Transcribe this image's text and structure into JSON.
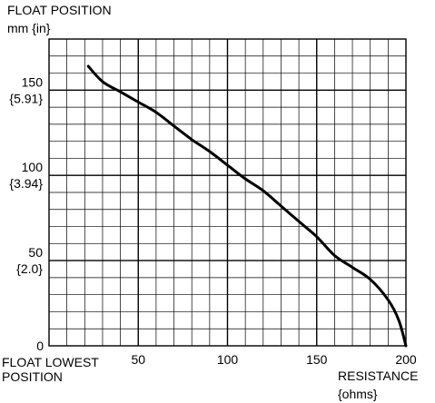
{
  "chart_data": {
    "type": "line",
    "ylabel": [
      "FLOAT POSITION",
      "mm {in}"
    ],
    "xlabel": [
      "RESISTANCE",
      "{ohms}"
    ],
    "origin_label": [
      "FLOAT LOWEST",
      "POSITION"
    ],
    "xlim": [
      0,
      200
    ],
    "ylim": [
      0,
      180
    ],
    "grid": true,
    "x_ticks": [
      {
        "value": 50,
        "label": "50"
      },
      {
        "value": 100,
        "label": "100"
      },
      {
        "value": 150,
        "label": "150"
      },
      {
        "value": 200,
        "label": "200"
      }
    ],
    "y_ticks": [
      {
        "value": 0,
        "label": [
          "0"
        ]
      },
      {
        "value": 50,
        "label": [
          "50",
          "{2.0}"
        ]
      },
      {
        "value": 100,
        "label": [
          "100",
          "{3.94}"
        ]
      },
      {
        "value": 150,
        "label": [
          "150",
          "{5.91}"
        ]
      }
    ],
    "series": [
      {
        "x": [
          22,
          30,
          40,
          50,
          60,
          70,
          80,
          90,
          100,
          110,
          120,
          130,
          140,
          150,
          160,
          170,
          180,
          190,
          196,
          200
        ],
        "y": [
          164,
          155,
          149,
          143,
          137,
          129,
          121,
          114,
          106,
          98,
          91,
          82,
          73,
          64,
          53,
          46,
          39,
          27,
          15,
          0
        ]
      }
    ]
  }
}
